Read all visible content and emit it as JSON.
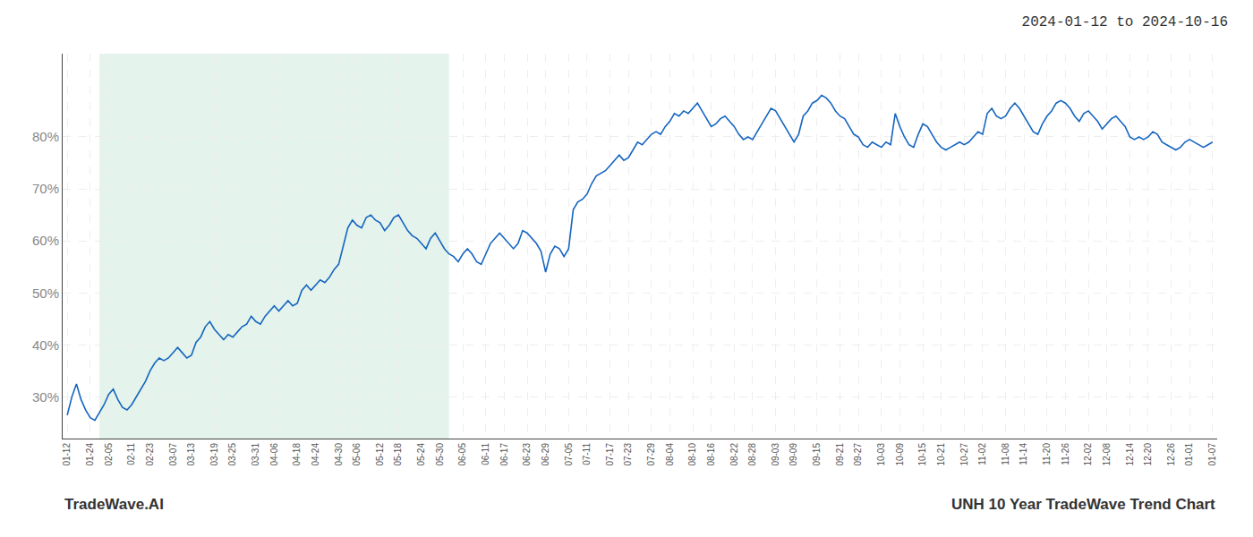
{
  "chart_data": {
    "type": "line",
    "title": "2024-01-12 to 2024-10-16",
    "annotations": [
      "TradeWave.AI",
      "UNH 10 Year TradeWave Trend Chart"
    ],
    "color": "#1565c0",
    "grid": true,
    "shaded_range": {
      "start": 7,
      "end": 83,
      "color": "#d6ede0"
    },
    "ylim": [
      22,
      96
    ],
    "yticks": [
      {
        "value": 30,
        "label": "30%"
      },
      {
        "value": 40,
        "label": "40%"
      },
      {
        "value": 50,
        "label": "50%"
      },
      {
        "value": 60,
        "label": "60%"
      },
      {
        "value": 70,
        "label": "70%"
      },
      {
        "value": 80,
        "label": "80%"
      }
    ],
    "categories": [
      "01-12",
      null,
      null,
      null,
      null,
      "01-24",
      null,
      null,
      null,
      "02-05",
      null,
      null,
      null,
      null,
      "02-11",
      null,
      null,
      null,
      "02-23",
      null,
      null,
      null,
      null,
      "03-07",
      null,
      null,
      null,
      "03-13",
      null,
      null,
      null,
      null,
      "03-19",
      null,
      null,
      null,
      "03-25",
      null,
      null,
      null,
      null,
      "03-31",
      null,
      null,
      null,
      "04-06",
      null,
      null,
      null,
      null,
      "04-18",
      null,
      null,
      null,
      "04-24",
      null,
      null,
      null,
      null,
      "04-30",
      null,
      null,
      null,
      "05-06",
      null,
      null,
      null,
      null,
      "05-12",
      null,
      null,
      null,
      "05-18",
      null,
      null,
      null,
      null,
      "05-24",
      null,
      null,
      null,
      "05-30",
      null,
      null,
      null,
      null,
      "06-05",
      null,
      null,
      null,
      null,
      "06-11",
      null,
      null,
      null,
      "06-17",
      null,
      null,
      null,
      null,
      "06-23",
      null,
      null,
      null,
      "06-29",
      null,
      null,
      null,
      null,
      "07-05",
      null,
      null,
      null,
      "07-11",
      null,
      null,
      null,
      null,
      "07-17",
      null,
      null,
      null,
      "07-23",
      null,
      null,
      null,
      null,
      "07-29",
      null,
      null,
      null,
      "08-04",
      null,
      null,
      null,
      null,
      "08-10",
      null,
      null,
      null,
      "08-16",
      null,
      null,
      null,
      null,
      "08-22",
      null,
      null,
      null,
      "08-28",
      null,
      null,
      null,
      null,
      "09-03",
      null,
      null,
      null,
      "09-09",
      null,
      null,
      null,
      null,
      "09-15",
      null,
      null,
      null,
      null,
      "09-21",
      null,
      null,
      null,
      "09-27",
      null,
      null,
      null,
      null,
      "10-03",
      null,
      null,
      null,
      "10-09",
      null,
      null,
      null,
      null,
      "10-15",
      null,
      null,
      null,
      "10-21",
      null,
      null,
      null,
      null,
      "10-27",
      null,
      null,
      null,
      "11-02",
      null,
      null,
      null,
      null,
      "11-08",
      null,
      null,
      null,
      "11-14",
      null,
      null,
      null,
      null,
      "11-20",
      null,
      null,
      null,
      "11-26",
      null,
      null,
      null,
      null,
      "12-02",
      null,
      null,
      null,
      "12-08",
      null,
      null,
      null,
      null,
      "12-14",
      null,
      null,
      null,
      "12-20",
      null,
      null,
      null,
      null,
      "12-26",
      null,
      null,
      null,
      "01-01",
      null,
      null,
      null,
      null,
      "01-07"
    ],
    "values": [
      26.5,
      30.0,
      32.5,
      29.5,
      27.5,
      26.0,
      25.5,
      27.0,
      28.5,
      30.5,
      31.5,
      29.5,
      28.0,
      27.5,
      28.5,
      30.0,
      31.5,
      33.0,
      35.0,
      36.5,
      37.5,
      37.0,
      37.5,
      38.5,
      39.5,
      38.5,
      37.5,
      38.0,
      40.5,
      41.5,
      43.5,
      44.5,
      43.0,
      42.0,
      41.0,
      42.0,
      41.5,
      42.5,
      43.5,
      44.0,
      45.5,
      44.5,
      44.0,
      45.5,
      46.5,
      47.5,
      46.5,
      47.5,
      48.5,
      47.5,
      48.0,
      50.5,
      51.5,
      50.5,
      51.5,
      52.5,
      52.0,
      53.0,
      54.5,
      55.5,
      59.0,
      62.5,
      64.0,
      63.0,
      62.5,
      64.5,
      65.0,
      64.0,
      63.5,
      62.0,
      63.0,
      64.5,
      65.0,
      63.5,
      62.0,
      61.0,
      60.5,
      59.5,
      58.5,
      60.5,
      61.5,
      60.0,
      58.5,
      57.5,
      57.0,
      56.0,
      57.5,
      58.5,
      57.5,
      56.0,
      55.5,
      57.5,
      59.5,
      60.5,
      61.5,
      60.5,
      59.5,
      58.5,
      59.5,
      62.0,
      61.5,
      60.5,
      59.5,
      58.0,
      54.0,
      57.5,
      59.0,
      58.5,
      57.0,
      58.5,
      66.0,
      67.5,
      68.0,
      69.0,
      71.0,
      72.5,
      73.0,
      73.5,
      74.5,
      75.5,
      76.5,
      75.5,
      76.0,
      77.5,
      79.0,
      78.5,
      79.5,
      80.5,
      81.0,
      80.5,
      82.0,
      83.0,
      84.5,
      84.0,
      85.0,
      84.5,
      85.5,
      86.5,
      85.0,
      83.5,
      82.0,
      82.5,
      83.5,
      84.0,
      83.0,
      82.0,
      80.5,
      79.5,
      80.0,
      79.5,
      81.0,
      82.5,
      84.0,
      85.5,
      85.0,
      83.5,
      82.0,
      80.5,
      79.0,
      80.5,
      84.0,
      85.0,
      86.5,
      87.0,
      88.0,
      87.5,
      86.5,
      85.0,
      84.0,
      83.5,
      82.0,
      80.5,
      80.0,
      78.5,
      78.0,
      79.0,
      78.5,
      78.0,
      79.0,
      78.5,
      84.5,
      82.0,
      80.0,
      78.5,
      78.0,
      80.5,
      82.5,
      82.0,
      80.5,
      79.0,
      78.0,
      77.5,
      78.0,
      78.5,
      79.0,
      78.5,
      79.0,
      80.0,
      81.0,
      80.5,
      84.5,
      85.5,
      84.0,
      83.5,
      84.0,
      85.5,
      86.5,
      85.5,
      84.0,
      82.5,
      81.0,
      80.5,
      82.5,
      84.0,
      85.0,
      86.5,
      87.0,
      86.5,
      85.5,
      84.0,
      83.0,
      84.5,
      85.0,
      84.0,
      83.0,
      81.5,
      82.5,
      83.5,
      84.0,
      83.0,
      82.0,
      80.0,
      79.5,
      80.0,
      79.5,
      80.0,
      81.0,
      80.5,
      79.0,
      78.5,
      78.0,
      77.5,
      78.0,
      79.0,
      79.5,
      79.0,
      78.5,
      78.0,
      78.5,
      79.0
    ]
  }
}
